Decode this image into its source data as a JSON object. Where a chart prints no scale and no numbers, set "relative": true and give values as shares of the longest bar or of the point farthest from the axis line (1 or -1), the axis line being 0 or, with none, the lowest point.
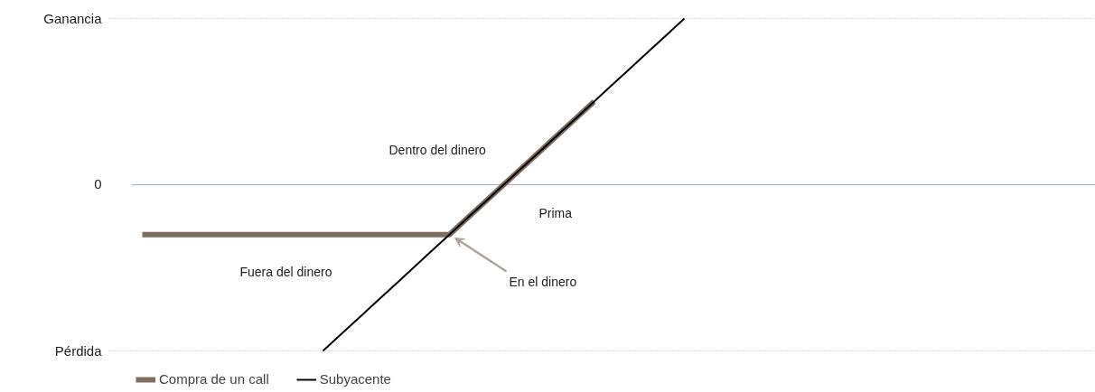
{
  "chart_data": {
    "type": "line",
    "categories": [
      null,
      null,
      null,
      null,
      null,
      null,
      null,
      null,
      null,
      null,
      null,
      null,
      null,
      null,
      null,
      null,
      null,
      null,
      null,
      null,
      null,
      null,
      null,
      null,
      null,
      null,
      null,
      null,
      null,
      null,
      null,
      null,
      null,
      null,
      null,
      null,
      null,
      null,
      null,
      null,
      null,
      null,
      null,
      null,
      null,
      null,
      null,
      null,
      null,
      null,
      null,
      null,
      null
    ],
    "series": [
      {
        "name": "Compra de un call",
        "color": "#7f6d5f",
        "values": [
          -0.3,
          -0.3,
          -0.3,
          -0.3,
          -0.3,
          -0.3,
          -0.3,
          -0.3,
          -0.3,
          -0.3,
          -0.3,
          -0.3,
          -0.3,
          -0.3,
          -0.3,
          -0.3,
          -0.3,
          -0.3,
          -0.2,
          -0.1,
          0,
          0.1,
          0.2,
          0.3,
          0.4,
          0.5,
          null,
          null,
          null,
          null,
          null,
          null,
          null,
          null,
          null,
          null,
          null,
          null,
          null,
          null,
          null,
          null,
          null,
          null,
          null,
          null,
          null,
          null,
          null,
          null,
          null,
          null,
          null
        ]
      },
      {
        "name": "Subyacente",
        "color": "#000000",
        "values": [
          null,
          null,
          null,
          null,
          null,
          null,
          null,
          null,
          null,
          null,
          -1,
          -0.9,
          -0.8,
          -0.7,
          -0.6,
          -0.5,
          -0.4,
          -0.3,
          -0.2,
          -0.1,
          0,
          0.1,
          0.2,
          0.3,
          0.4,
          0.5,
          0.6,
          0.7,
          0.8,
          0.9,
          1,
          null,
          null,
          null,
          null,
          null,
          null,
          null,
          null,
          null,
          null,
          null,
          null,
          null,
          null,
          null,
          null,
          null,
          null,
          null,
          null,
          null,
          null
        ]
      }
    ],
    "relative": true,
    "legend": "bottom left",
    "ref_lines": [
      {
        "axis": "y",
        "value": 0,
        "color": "#9fb3c4"
      }
    ],
    "annotations": [
      "Ganancia",
      "0",
      "Pérdida",
      "Dentro del dinero",
      "Prima",
      "Fuera del dinero",
      "En el dinero"
    ]
  }
}
